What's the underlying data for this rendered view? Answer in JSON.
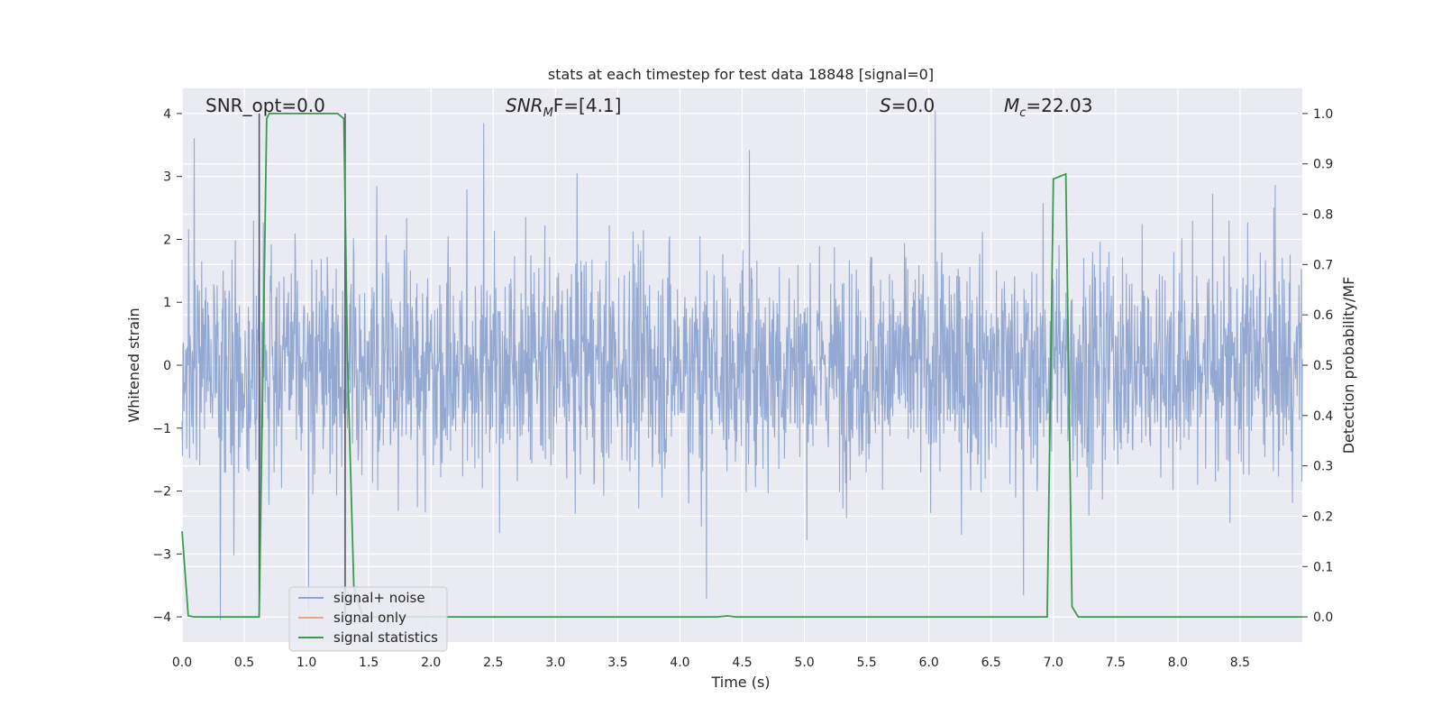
{
  "chart_data": {
    "type": "line",
    "title": "stats at each timestep for test data 18848 [signal=0]",
    "xlabel": "Time (s)",
    "ylabel_left": "Whitened strain",
    "ylabel_right": "Detection probability/MF",
    "xlim": [
      0.0,
      9.0
    ],
    "ylim_left": [
      -4.4,
      4.4
    ],
    "ylim_right": [
      -0.05,
      1.05
    ],
    "xticks": [
      "0.0",
      "0.5",
      "1.0",
      "1.5",
      "2.0",
      "2.5",
      "3.0",
      "3.5",
      "4.0",
      "4.5",
      "5.0",
      "5.5",
      "6.0",
      "6.5",
      "7.0",
      "7.5",
      "8.0",
      "8.5"
    ],
    "yticks_left": [
      "−4",
      "−3",
      "−2",
      "−1",
      "0",
      "1",
      "2",
      "3",
      "4"
    ],
    "yticks_right": [
      "0.0",
      "0.1",
      "0.2",
      "0.3",
      "0.4",
      "0.5",
      "0.6",
      "0.7",
      "0.8",
      "0.9",
      "1.0"
    ],
    "grid": true,
    "legend_position": "lower-left",
    "annotations": {
      "snr_opt": "SNR_opt=0.0",
      "snr_mf_sym": "SNR",
      "snr_mf_sub": "M",
      "snr_mf_rest": "F=[4.1]",
      "s_sym": "S",
      "s_rest": "=0.0",
      "mc_sym": "M",
      "mc_sub": "c",
      "mc_rest": "=22.03"
    },
    "series": [
      {
        "name": "signal+ noise",
        "color": "#8fa5d0",
        "description_values": "whitened noise, approx symmetric about 0, amplitude ~1.7 with spikes up to ~4"
      },
      {
        "name": "signal only",
        "color": "#e8a58c",
        "values": []
      },
      {
        "name": "signal statistics",
        "color": "#3a9b4f",
        "x": [
          0.0,
          0.05,
          0.1,
          0.62,
          0.68,
          0.7,
          0.75,
          1.25,
          1.3,
          1.33,
          1.38,
          1.45,
          4.3,
          4.38,
          4.45,
          6.95,
          6.98,
          7.0,
          7.1,
          7.15,
          7.2,
          9.0
        ],
        "y": [
          0.17,
          0.002,
          0.0,
          0.0,
          0.99,
          1.0,
          1.0,
          1.0,
          0.99,
          0.5,
          0.06,
          0.0,
          0.0,
          0.002,
          0.0,
          0.0,
          0.5,
          0.87,
          0.88,
          0.02,
          0.0,
          0.0
        ]
      }
    ],
    "vlines_x": [
      0.62,
      1.31
    ],
    "colors": {
      "background": "#eaeaf2",
      "grid": "#ffffff",
      "noise": "#8fa5d0",
      "signal": "#e8a58c",
      "stats": "#3a9b4f",
      "vline": "#555566"
    }
  }
}
